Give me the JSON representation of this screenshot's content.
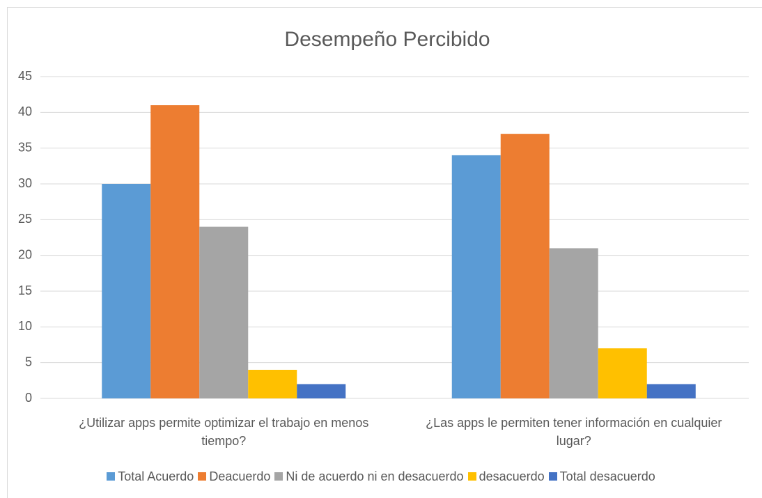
{
  "chart_data": {
    "type": "bar",
    "title": "Desempeño Percibido",
    "categories": [
      "¿Utilizar apps permite optimizar el trabajo en menos tiempo?",
      "¿Las apps le permiten tener información en cualquier lugar?"
    ],
    "series": [
      {
        "name": "Total Acuerdo",
        "color": "#5b9bd5",
        "values": [
          30,
          34
        ]
      },
      {
        "name": "Deacuerdo",
        "color": "#ed7d31",
        "values": [
          41,
          37
        ]
      },
      {
        "name": "Ni de acuerdo ni en desacuerdo",
        "color": "#a5a5a5",
        "values": [
          24,
          21
        ]
      },
      {
        "name": "desacuerdo",
        "color": "#ffc000",
        "values": [
          4,
          7
        ]
      },
      {
        "name": "Total desacuerdo",
        "color": "#4472c4",
        "values": [
          2,
          2
        ]
      }
    ],
    "ylim": [
      0,
      45
    ],
    "yticks": [
      0,
      5,
      10,
      15,
      20,
      25,
      30,
      35,
      40,
      45
    ],
    "grid": true,
    "legend": "bottom"
  }
}
